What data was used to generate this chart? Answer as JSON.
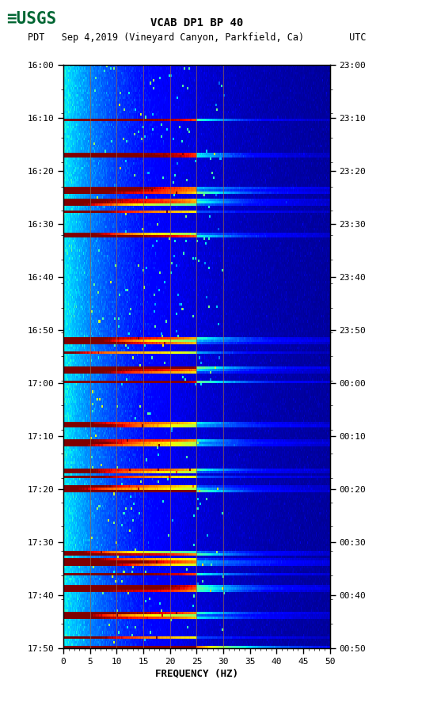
{
  "title_line1": "VCAB DP1 BP 40",
  "title_line2": "PDT   Sep 4,2019 (Vineyard Canyon, Parkfield, Ca)        UTC",
  "xlabel": "FREQUENCY (HZ)",
  "left_times": [
    "16:00",
    "16:10",
    "16:20",
    "16:30",
    "16:40",
    "16:50",
    "17:00",
    "17:10",
    "17:20",
    "17:30",
    "17:40",
    "17:50"
  ],
  "right_times": [
    "23:00",
    "23:10",
    "23:20",
    "23:30",
    "23:40",
    "23:50",
    "00:00",
    "00:10",
    "00:20",
    "00:30",
    "00:40",
    "00:50"
  ],
  "freq_ticks": [
    0,
    5,
    10,
    15,
    20,
    25,
    30,
    35,
    40,
    45,
    50
  ],
  "freq_min": 0,
  "freq_max": 50,
  "n_times": 240,
  "n_freqs": 500,
  "colormap": "jet",
  "bg_color": "#ffffff",
  "usgs_green": "#006633",
  "vertical_line_color": "#996644",
  "vertical_line_freqs": [
    5,
    10,
    15,
    20,
    25,
    30
  ],
  "seed": 12345
}
